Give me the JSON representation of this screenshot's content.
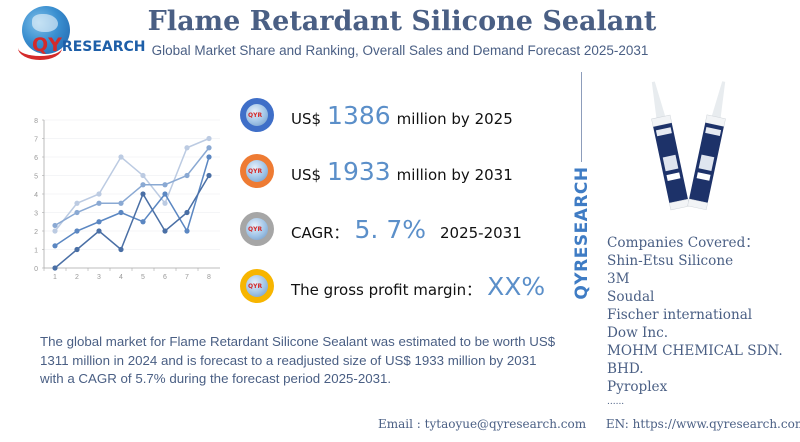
{
  "brand": {
    "logo_prefix": "QY",
    "logo_suffix": "RESEARCH",
    "vertical_brand": "QYRESEARCH"
  },
  "header": {
    "title": "Flame Retardant Silicone Sealant",
    "subtitle": "Global Market Share and Ranking, Overall Sales and Demand Forecast 2025-2031"
  },
  "stats": [
    {
      "icon": "globe-badge-blue-icon",
      "color": "#3f6fc8",
      "prefix": "US$",
      "value": "1386",
      "suffix": "million by 2025"
    },
    {
      "icon": "globe-badge-orange-icon",
      "color": "#ee7b33",
      "prefix": "US$",
      "value": "1933",
      "suffix": "million by 2031"
    },
    {
      "icon": "globe-badge-gray-icon",
      "color": "#a6a6a6",
      "prefix": "CAGR：",
      "value": "5. 7%",
      "suffix": "2025-2031"
    },
    {
      "icon": "globe-badge-yellow-icon",
      "color": "#f7b500",
      "prefix": "The gross profit margin：",
      "value": "XX%",
      "suffix": ""
    }
  ],
  "companies": {
    "heading": "Companies Covered：",
    "items": [
      "Shin-Etsu Silicone",
      "3M",
      "Soudal",
      "Fischer international",
      "Dow Inc.",
      "MOHM CHEMICAL SDN.",
      "BHD.",
      "Pyroplex",
      "......"
    ]
  },
  "description": "The global market for Flame Retardant Silicone Sealant was estimated to be worth US$ 1311 million in 2024 and is forecast to a readjusted size of US$ 1933 million by 2031 with a CAGR of 5.7% during the forecast period 2025-2031.",
  "footer": {
    "email": "Email :  tytaoyue@qyresearch.com",
    "website": "EN: https://www.qyresearch.com"
  },
  "chart_data": {
    "type": "line",
    "title": "",
    "xlabel": "",
    "ylabel": "",
    "categories": [
      "1",
      "2",
      "3",
      "4",
      "5",
      "6",
      "7",
      "8"
    ],
    "ylim": [
      0,
      8
    ],
    "yticks": [
      0,
      1,
      2,
      3,
      4,
      5,
      6,
      7,
      8
    ],
    "grid": true,
    "legend": "none",
    "series": [
      {
        "name": "series-1",
        "color": "#4a6fa5",
        "values": [
          0,
          1,
          2,
          1,
          4,
          2,
          3,
          5
        ]
      },
      {
        "name": "series-2",
        "color": "#5b87c2",
        "values": [
          1.2,
          2,
          2.5,
          3,
          2.5,
          4,
          2,
          6
        ]
      },
      {
        "name": "series-3",
        "color": "#8aa9d3",
        "values": [
          2.3,
          3,
          3.5,
          3.5,
          4.5,
          4.5,
          5,
          6.5
        ]
      },
      {
        "name": "series-4",
        "color": "#bccbe2",
        "values": [
          2,
          3.5,
          4,
          6,
          5,
          3.5,
          6.5,
          7
        ]
      }
    ]
  }
}
